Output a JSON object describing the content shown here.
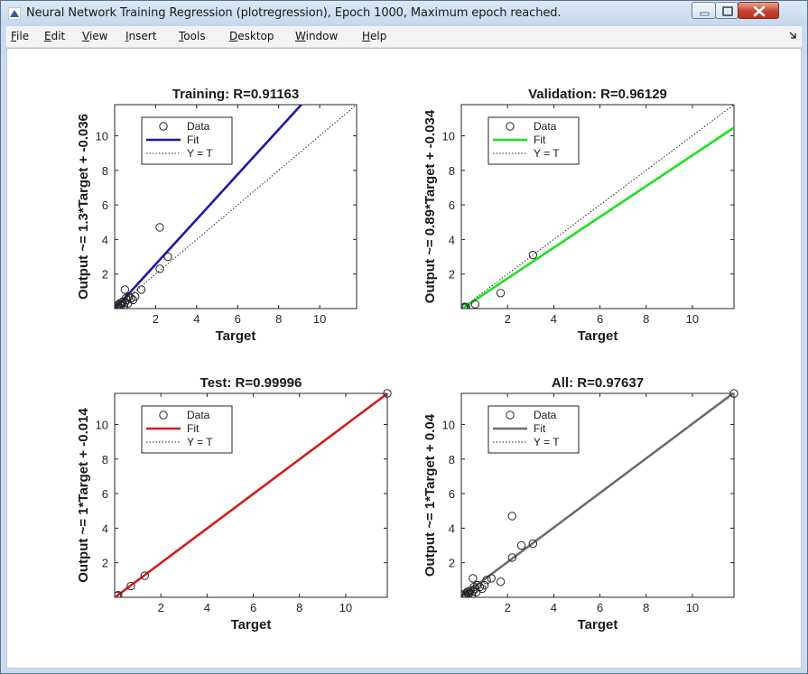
{
  "window": {
    "title": "Neural Network Training Regression (plotregression), Epoch 1000, Maximum epoch reached.",
    "controls": [
      "minimize",
      "maximize",
      "close"
    ]
  },
  "menubar": {
    "items": [
      {
        "label": "File",
        "icon": null
      },
      {
        "label": "Edit"
      },
      {
        "label": "View"
      },
      {
        "label": "Insert"
      },
      {
        "label": "Tools"
      },
      {
        "label": "Desktop"
      },
      {
        "label": "Window"
      },
      {
        "label": "Help"
      }
    ],
    "end_icon": "dock-arrow-icon"
  },
  "chart_data": [
    {
      "type": "scatter",
      "title": "Training: R=0.91163",
      "xlabel": "Target",
      "ylabel": "Output ~= 1.3*Target + -0.036",
      "xlim": [
        0,
        11.8
      ],
      "ylim": [
        0,
        11.8
      ],
      "xticks": [
        2,
        4,
        6,
        8,
        10
      ],
      "yticks": [
        2,
        4,
        6,
        8,
        10
      ],
      "fit_color": "#1a1aa6",
      "fit": {
        "slope": 1.3,
        "intercept": -0.036
      },
      "legend": [
        "Data",
        "Fit",
        "Y = T"
      ],
      "legend_position": "top-left",
      "points": [
        [
          0.1,
          0.1
        ],
        [
          0.15,
          0.2
        ],
        [
          0.2,
          0.12
        ],
        [
          0.25,
          0.3
        ],
        [
          0.3,
          0.18
        ],
        [
          0.35,
          0.25
        ],
        [
          0.4,
          0.4
        ],
        [
          0.45,
          0.15
        ],
        [
          0.5,
          0.35
        ],
        [
          0.55,
          0.6
        ],
        [
          0.6,
          0.5
        ],
        [
          0.7,
          0.7
        ],
        [
          0.8,
          0.6
        ],
        [
          0.9,
          0.5
        ],
        [
          1.0,
          0.7
        ],
        [
          0.5,
          1.1
        ],
        [
          1.3,
          1.1
        ],
        [
          2.2,
          4.7
        ],
        [
          2.2,
          2.3
        ],
        [
          2.6,
          3.0
        ],
        [
          0.2,
          0.05
        ],
        [
          0.3,
          0.3
        ],
        [
          0.65,
          0.3
        ]
      ]
    },
    {
      "type": "scatter",
      "title": "Validation: R=0.96129",
      "xlabel": "Target",
      "ylabel": "Output ~= 0.89*Target + -0.034",
      "xlim": [
        0,
        11.8
      ],
      "ylim": [
        0,
        11.8
      ],
      "xticks": [
        2,
        4,
        6,
        8,
        10
      ],
      "yticks": [
        2,
        4,
        6,
        8,
        10
      ],
      "fit_color": "#1ee01e",
      "fit": {
        "slope": 0.89,
        "intercept": -0.034
      },
      "legend": [
        "Data",
        "Fit",
        "Y = T"
      ],
      "legend_position": "top-left",
      "points": [
        [
          0.1,
          0.05
        ],
        [
          0.15,
          0.1
        ],
        [
          0.2,
          0.08
        ],
        [
          0.6,
          0.25
        ],
        [
          1.7,
          0.9
        ],
        [
          3.1,
          3.1
        ]
      ]
    },
    {
      "type": "scatter",
      "title": "Test: R=0.99996",
      "xlabel": "Target",
      "ylabel": "Output ~= 1*Target + -0.014",
      "xlim": [
        0,
        11.8
      ],
      "ylim": [
        0,
        11.8
      ],
      "xticks": [
        2,
        4,
        6,
        8,
        10
      ],
      "yticks": [
        2,
        4,
        6,
        8,
        10
      ],
      "fit_color": "#d41c1c",
      "fit": {
        "slope": 1.0,
        "intercept": -0.014
      },
      "legend": [
        "Data",
        "Fit",
        "Y = T"
      ],
      "legend_position": "top-left",
      "points": [
        [
          0.1,
          0.08
        ],
        [
          0.15,
          0.12
        ],
        [
          0.7,
          0.65
        ],
        [
          1.3,
          1.25
        ],
        [
          11.8,
          11.8
        ]
      ]
    },
    {
      "type": "scatter",
      "title": "All: R=0.97637",
      "xlabel": "Target",
      "ylabel": "Output ~= 1*Target + 0.04",
      "xlim": [
        0,
        11.8
      ],
      "ylim": [
        0,
        11.8
      ],
      "xticks": [
        2,
        4,
        6,
        8,
        10
      ],
      "yticks": [
        2,
        4,
        6,
        8,
        10
      ],
      "fit_color": "#6e6e6e",
      "fit": {
        "slope": 1.0,
        "intercept": 0.04
      },
      "legend": [
        "Data",
        "Fit",
        "Y = T"
      ],
      "legend_position": "top-left",
      "points": [
        [
          0.1,
          0.1
        ],
        [
          0.15,
          0.2
        ],
        [
          0.2,
          0.12
        ],
        [
          0.25,
          0.3
        ],
        [
          0.3,
          0.18
        ],
        [
          0.35,
          0.25
        ],
        [
          0.4,
          0.4
        ],
        [
          0.45,
          0.15
        ],
        [
          0.5,
          0.35
        ],
        [
          0.55,
          0.6
        ],
        [
          0.6,
          0.5
        ],
        [
          0.7,
          0.7
        ],
        [
          0.8,
          0.6
        ],
        [
          0.9,
          0.5
        ],
        [
          1.0,
          0.7
        ],
        [
          0.5,
          1.1
        ],
        [
          1.3,
          1.1
        ],
        [
          1.1,
          1.0
        ],
        [
          1.7,
          0.9
        ],
        [
          2.2,
          4.7
        ],
        [
          2.2,
          2.3
        ],
        [
          2.6,
          3.0
        ],
        [
          3.1,
          3.1
        ],
        [
          11.8,
          11.8
        ],
        [
          0.2,
          0.05
        ],
        [
          0.3,
          0.3
        ],
        [
          0.65,
          0.3
        ]
      ]
    }
  ]
}
